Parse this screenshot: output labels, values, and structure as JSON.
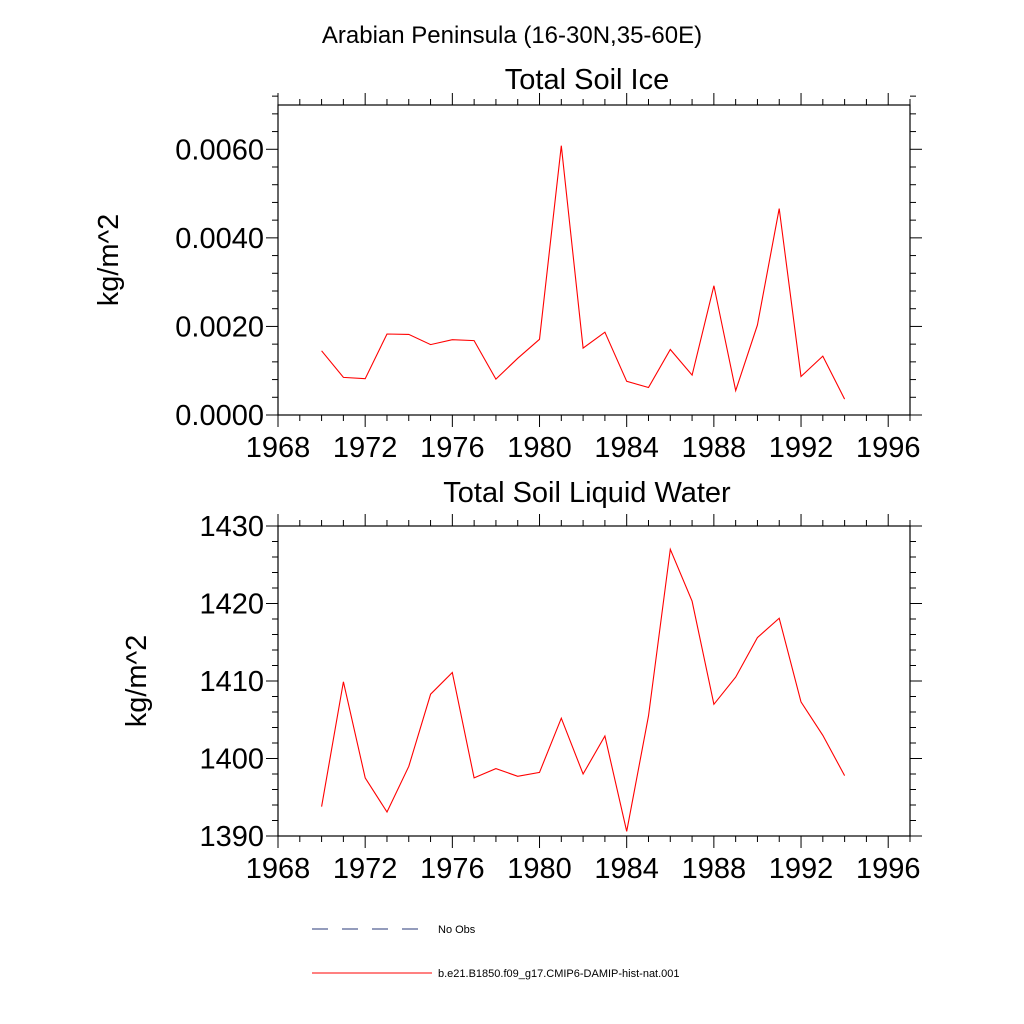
{
  "figure": {
    "title": "Arabian Peninsula (16-30N,35-60E)"
  },
  "colors": {
    "series": "#ff0000",
    "no_obs": "#2a3a7a",
    "axis": "#000000"
  },
  "legend": {
    "items": [
      {
        "label": "No Obs",
        "style": "dashed",
        "color": "#2a3a7a"
      },
      {
        "label": "b.e21.B1850.f09_g17.CMIP6-DAMIP-hist-nat.001",
        "style": "solid",
        "color": "#ff0000"
      }
    ]
  },
  "chart_data": [
    {
      "type": "line",
      "title": "Total Soil Ice",
      "xlabel": "",
      "ylabel": "kg/m^2",
      "xlim": [
        1968,
        1997
      ],
      "ylim": [
        0.0,
        0.007
      ],
      "xticks": [
        1968,
        1972,
        1976,
        1980,
        1984,
        1988,
        1992,
        1996
      ],
      "xtick_labels": [
        "1968",
        "1972",
        "1976",
        "1980",
        "1984",
        "1988",
        "1992",
        "1996"
      ],
      "yticks": [
        0.0,
        0.002,
        0.004,
        0.006
      ],
      "ytick_labels": [
        "0.0000",
        "0.0020",
        "0.0040",
        "0.0060"
      ],
      "grid": false,
      "x": [
        1970,
        1971,
        1972,
        1973,
        1974,
        1975,
        1976,
        1977,
        1978,
        1979,
        1980,
        1981,
        1982,
        1983,
        1984,
        1985,
        1986,
        1987,
        1988,
        1989,
        1990,
        1991,
        1992,
        1993,
        1994
      ],
      "series": [
        {
          "values": [
            0.00145,
            0.00085,
            0.00082,
            0.00183,
            0.00182,
            0.00159,
            0.0017,
            0.00168,
            0.00081,
            0.00128,
            0.00171,
            0.00608,
            0.00151,
            0.00187,
            0.00076,
            0.00062,
            0.00148,
            0.0009,
            0.00292,
            0.00055,
            0.00203,
            0.00466,
            0.00087,
            0.00133,
            0.00036
          ]
        }
      ]
    },
    {
      "type": "line",
      "title": "Total Soil Liquid Water",
      "xlabel": "",
      "ylabel": "kg/m^2",
      "xlim": [
        1968,
        1997
      ],
      "ylim": [
        1390,
        1430
      ],
      "xticks": [
        1968,
        1972,
        1976,
        1980,
        1984,
        1988,
        1992,
        1996
      ],
      "xtick_labels": [
        "1968",
        "1972",
        "1976",
        "1980",
        "1984",
        "1988",
        "1992",
        "1996"
      ],
      "yticks": [
        1390,
        1400,
        1410,
        1420,
        1430
      ],
      "ytick_labels": [
        "1390",
        "1400",
        "1410",
        "1420",
        "1430"
      ],
      "grid": false,
      "x": [
        1970,
        1971,
        1972,
        1973,
        1974,
        1975,
        1976,
        1977,
        1978,
        1979,
        1980,
        1981,
        1982,
        1983,
        1984,
        1985,
        1986,
        1987,
        1988,
        1989,
        1990,
        1991,
        1992,
        1993,
        1994
      ],
      "series": [
        {
          "values": [
            1393.8,
            1409.9,
            1397.5,
            1393.1,
            1399.0,
            1408.3,
            1411.1,
            1397.5,
            1398.7,
            1397.7,
            1398.2,
            1405.2,
            1398.0,
            1402.9,
            1390.6,
            1405.5,
            1427.0,
            1420.3,
            1407.0,
            1410.5,
            1415.6,
            1418.1,
            1407.3,
            1403.0,
            1397.8
          ]
        }
      ]
    }
  ]
}
